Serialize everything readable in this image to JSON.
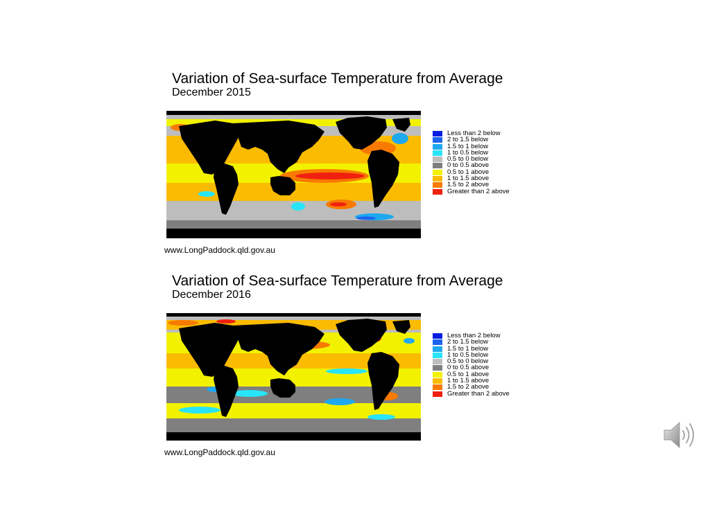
{
  "panels": [
    {
      "title": "Variation of Sea-surface Temperature from Average",
      "subtitle": "December 2015",
      "source": "www.LongPaddock.qld.gov.au"
    },
    {
      "title": "Variation of Sea-surface Temperature from Average",
      "subtitle": "December 2016",
      "source": "www.LongPaddock.qld.gov.au"
    }
  ],
  "legend": [
    {
      "label": "Less than 2 below",
      "color": "#0a1ee0"
    },
    {
      "label": "2 to 1.5 below",
      "color": "#1c64ee"
    },
    {
      "label": "1.5 to 1 below",
      "color": "#1ea8f0"
    },
    {
      "label": "1 to 0.5 below",
      "color": "#28e4f8"
    },
    {
      "label": "0.5 to 0 below",
      "color": "#bdbdbd"
    },
    {
      "label": "0 to 0.5 above",
      "color": "#7f7f7f"
    },
    {
      "label": "0.5 to 1 above",
      "color": "#f2f200"
    },
    {
      "label": "1 to 1.5 above",
      "color": "#fbbb00"
    },
    {
      "label": "1.5 to 2 above",
      "color": "#f87a00"
    },
    {
      "label": "Greater than 2 above",
      "color": "#f02010"
    }
  ],
  "colors": {
    "land": "#000000",
    "ice": "#bdbdbd",
    "background": "#ffffff"
  },
  "speaker": {
    "icon": "speaker-icon"
  }
}
